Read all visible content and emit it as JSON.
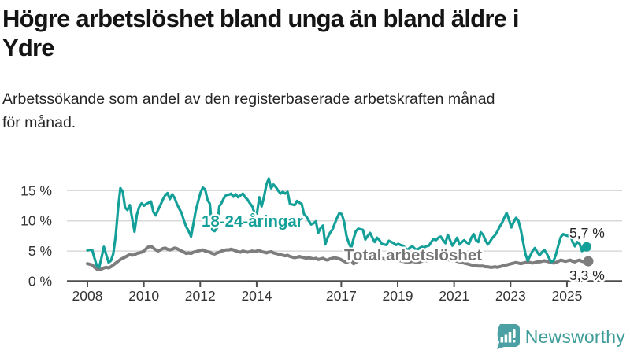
{
  "header": {
    "title": "Högre arbetslöshet bland unga än bland äldre i Ydre",
    "title_lines": [
      "Högre arbetslöshet bland unga än bland äldre i",
      "Ydre"
    ],
    "subtitle": "Arbetssökande som andel av den registerbaserade arbetskraften månad för månad.",
    "subtitle_lines": [
      "Arbetssökande som andel av den registerbaserade arbetskraften månad",
      "för månad."
    ]
  },
  "footer": {
    "brand_name": "Newsworthy",
    "logo_icon": "speech-bubble-bar-chart-icon",
    "brand_color": "#3F9D99"
  },
  "colors": {
    "young_line": "#14A099",
    "total_line": "#7D7D7D",
    "total_label": "#757575",
    "axis": "#4D4D4D",
    "axis_text": "#333333",
    "gridline": "#D9D9D9",
    "end_label_text": "#262626",
    "background": "#FFFFFF"
  },
  "chart_data": {
    "type": "line",
    "title": "Högre arbetslöshet bland unga än bland äldre i Ydre",
    "subtitle": "Arbetssökande som andel av den registerbaserade arbetskraften månad för månad.",
    "unit": "%",
    "x_domain": {
      "start": "2008-01",
      "end": "2025-09",
      "points_per_year": 12
    },
    "x_tick_labels": [
      "2008",
      "2010",
      "2012",
      "2014",
      "2017",
      "2019",
      "2021",
      "2023",
      "2025"
    ],
    "y_ticks": [
      0,
      5,
      10,
      15
    ],
    "y_tick_labels": [
      "0 %",
      "5 %",
      "10 %",
      "15 %"
    ],
    "ylim": [
      0,
      18
    ],
    "grid": true,
    "legend_position": "inline-labels",
    "series": [
      {
        "name": "Total arbetslöshet",
        "color": "#7D7D7D",
        "end_label": "3,3 %",
        "end_value": 3.3,
        "values": [
          2.9,
          2.8,
          2.7,
          2.3,
          2.0,
          1.9,
          2.0,
          2.2,
          2.3,
          2.2,
          2.4,
          2.7,
          3.0,
          3.3,
          3.6,
          3.8,
          4.0,
          4.2,
          4.4,
          4.3,
          4.4,
          4.6,
          4.7,
          4.8,
          5.0,
          5.4,
          5.7,
          5.8,
          5.5,
          5.2,
          5.0,
          5.2,
          5.4,
          5.5,
          5.3,
          5.2,
          5.3,
          5.5,
          5.4,
          5.2,
          5.0,
          4.8,
          4.6,
          4.7,
          4.6,
          4.8,
          4.9,
          5.0,
          5.1,
          5.2,
          5.0,
          4.9,
          4.8,
          4.6,
          4.5,
          4.7,
          4.8,
          5.0,
          5.1,
          5.2,
          5.2,
          5.3,
          5.2,
          5.0,
          4.9,
          4.8,
          5.0,
          4.9,
          4.8,
          4.9,
          5.0,
          4.9,
          5.0,
          5.1,
          4.9,
          4.8,
          4.7,
          4.8,
          4.9,
          4.7,
          4.6,
          4.5,
          4.4,
          4.3,
          4.2,
          4.3,
          4.1,
          4.0,
          3.9,
          4.0,
          4.1,
          4.0,
          3.9,
          3.8,
          3.9,
          3.8,
          3.7,
          3.8,
          3.6,
          3.7,
          3.8,
          3.6,
          3.5,
          3.7,
          3.8,
          3.9,
          3.8,
          3.7,
          3.5,
          3.3,
          3.1,
          3.3,
          3.5,
          2.9,
          3.1,
          3.4,
          3.8,
          4.2,
          4.4,
          4.3,
          4.3,
          4.2,
          4.1,
          4.0,
          3.9,
          3.8,
          3.7,
          3.6,
          3.7,
          3.6,
          3.5,
          3.5,
          3.4,
          3.4,
          3.3,
          3.2,
          3.1,
          3.2,
          3.3,
          3.2,
          3.1,
          3.2,
          3.3,
          3.4,
          3.4,
          3.5,
          3.8,
          4.0,
          4.1,
          4.0,
          3.9,
          3.8,
          3.7,
          3.6,
          3.5,
          3.4,
          3.4,
          3.3,
          3.2,
          3.1,
          3.0,
          2.9,
          2.8,
          2.7,
          2.6,
          2.6,
          2.5,
          2.5,
          2.5,
          2.4,
          2.4,
          2.3,
          2.3,
          2.4,
          2.3,
          2.4,
          2.5,
          2.6,
          2.7,
          2.8,
          2.9,
          3.0,
          3.1,
          3.0,
          2.9,
          3.0,
          3.1,
          3.2,
          3.1,
          3.0,
          3.1,
          3.2,
          3.2,
          3.3,
          3.4,
          3.3,
          3.2,
          3.1,
          3.0,
          3.1,
          3.3,
          3.5,
          3.4,
          3.3,
          3.4,
          3.5,
          3.3,
          3.2,
          3.4,
          3.5,
          3.3,
          3.2,
          3.3
        ]
      },
      {
        "name": "18-24-åringar",
        "color": "#14A099",
        "end_label": "5,7 %",
        "end_value": 5.7,
        "values": [
          5.1,
          5.2,
          5.2,
          3.8,
          2.5,
          2.3,
          3.9,
          5.7,
          4.4,
          3.1,
          3.4,
          4.6,
          7.5,
          12.0,
          15.4,
          14.8,
          12.2,
          11.8,
          12.6,
          10.4,
          8.2,
          11.0,
          12.3,
          12.9,
          12.5,
          12.8,
          13.0,
          13.2,
          11.5,
          10.9,
          11.8,
          12.6,
          13.5,
          14.2,
          14.6,
          13.6,
          14.4,
          13.8,
          12.8,
          12.0,
          11.3,
          10.0,
          9.0,
          8.3,
          7.4,
          9.5,
          11.7,
          13.2,
          14.6,
          15.5,
          15.2,
          13.5,
          12.8,
          8.5,
          8.3,
          8.8,
          12.4,
          13.0,
          13.8,
          14.3,
          14.3,
          14.5,
          14.0,
          14.4,
          13.9,
          14.2,
          14.5,
          13.9,
          13.5,
          12.9,
          12.4,
          11.2,
          11.2,
          13.9,
          12.4,
          14.0,
          16.0,
          17.0,
          15.4,
          16.0,
          15.6,
          15.0,
          14.5,
          14.8,
          14.5,
          14.8,
          12.8,
          12.7,
          12.6,
          13.3,
          13.0,
          12.8,
          11.1,
          10.7,
          10.0,
          9.4,
          9.6,
          9.9,
          8.0,
          8.8,
          9.2,
          6.1,
          7.2,
          8.0,
          8.5,
          9.5,
          10.5,
          11.3,
          11.1,
          9.8,
          7.5,
          6.3,
          5.5,
          7.0,
          8.3,
          8.7,
          8.6,
          8.5,
          6.9,
          7.5,
          8.0,
          7.2,
          6.5,
          7.2,
          6.8,
          6.2,
          6.1,
          6.0,
          6.7,
          6.5,
          6.3,
          6.0,
          6.2,
          6.0,
          5.9,
          5.5,
          5.2,
          5.6,
          5.8,
          5.4,
          5.2,
          5.5,
          5.7,
          5.6,
          5.8,
          5.9,
          6.5,
          7.0,
          6.8,
          7.2,
          7.4,
          6.8,
          6.3,
          7.7,
          6.8,
          5.9,
          6.5,
          7.2,
          6.1,
          6.5,
          6.8,
          6.4,
          6.2,
          7.2,
          7.8,
          6.8,
          6.5,
          8.1,
          7.7,
          6.8,
          6.1,
          6.6,
          7.2,
          7.6,
          8.2,
          9.0,
          9.6,
          10.5,
          11.3,
          10.2,
          8.9,
          9.8,
          10.5,
          10.0,
          8.5,
          6.5,
          4.5,
          3.4,
          4.2,
          5.0,
          5.5,
          4.8,
          4.3,
          4.8,
          5.2,
          4.6,
          3.8,
          3.2,
          3.4,
          4.5,
          6.0,
          7.3,
          7.8,
          7.6,
          7.5,
          7.7,
          6.5,
          5.8,
          6.5,
          6.2,
          5.0,
          5.2,
          5.7
        ]
      }
    ]
  }
}
